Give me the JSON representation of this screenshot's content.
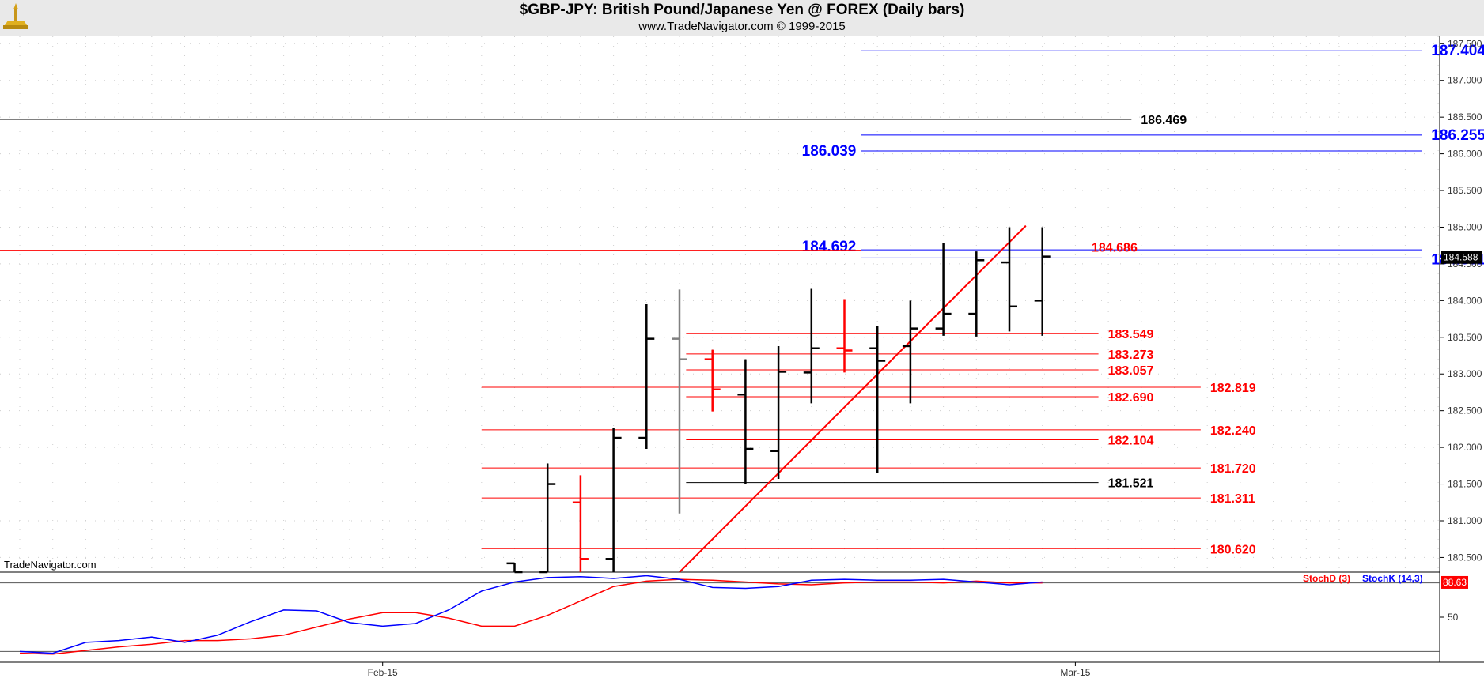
{
  "header": {
    "title": "$GBP-JPY:  British Pound/Japanese Yen @ FOREX  (Daily bars)",
    "subtitle": "www.TradeNavigator.com © 1999-2015"
  },
  "watermark": "TradeNavigator.com",
  "colors": {
    "up_bar": "#000000",
    "down_bar": "#ff0000",
    "neutral_bar": "#808080",
    "level_red": "#ff0000",
    "level_blue": "#0000ff",
    "level_black": "#000000",
    "stoch_d": "#ff0000",
    "stoch_k": "#0000ff",
    "header_bg": "#e9e9e9"
  },
  "chart_data": [
    {
      "type": "ohlc",
      "y_axis": {
        "ylim": [
          180.3,
          187.6
        ],
        "ticks": [
          "180.500",
          "181.000",
          "181.500",
          "182.000",
          "182.500",
          "183.000",
          "183.500",
          "184.000",
          "184.500",
          "185.000",
          "185.500",
          "186.000",
          "186.500",
          "187.000",
          "187.500"
        ]
      },
      "x_axis": {
        "labels": [
          {
            "label": "Feb-15",
            "index": 11
          },
          {
            "label": "Mar-15",
            "index": 32
          }
        ]
      },
      "bars": [
        {
          "i": 15,
          "o": 180.42,
          "h": 180.42,
          "l": 180.3,
          "c": 180.3,
          "color": "black"
        },
        {
          "i": 16,
          "o": 180.3,
          "h": 181.78,
          "l": 180.3,
          "c": 181.5,
          "color": "black"
        },
        {
          "i": 17,
          "o": 181.25,
          "h": 181.62,
          "l": 180.3,
          "c": 180.48,
          "color": "red"
        },
        {
          "i": 18,
          "o": 180.48,
          "h": 182.27,
          "l": 180.3,
          "c": 182.13,
          "color": "black"
        },
        {
          "i": 19,
          "o": 182.13,
          "h": 183.95,
          "l": 181.98,
          "c": 183.48,
          "color": "black"
        },
        {
          "i": 20,
          "o": 183.48,
          "h": 184.15,
          "l": 181.1,
          "c": 183.2,
          "color": "gray"
        },
        {
          "i": 21,
          "o": 183.2,
          "h": 183.33,
          "l": 182.49,
          "c": 182.79,
          "color": "red"
        },
        {
          "i": 22,
          "o": 182.72,
          "h": 183.2,
          "l": 181.5,
          "c": 181.98,
          "color": "black"
        },
        {
          "i": 23,
          "o": 181.95,
          "h": 183.38,
          "l": 181.57,
          "c": 183.03,
          "color": "black"
        },
        {
          "i": 24,
          "o": 183.02,
          "h": 184.16,
          "l": 182.6,
          "c": 183.35,
          "color": "black"
        },
        {
          "i": 25,
          "o": 183.35,
          "h": 184.02,
          "l": 183.02,
          "c": 183.32,
          "color": "red"
        },
        {
          "i": 26,
          "o": 183.35,
          "h": 183.65,
          "l": 181.65,
          "c": 183.18,
          "color": "black"
        },
        {
          "i": 27,
          "o": 183.38,
          "h": 184.0,
          "l": 182.6,
          "c": 183.62,
          "color": "black"
        },
        {
          "i": 28,
          "o": 183.62,
          "h": 184.78,
          "l": 183.52,
          "c": 183.82,
          "color": "black"
        },
        {
          "i": 29,
          "o": 183.82,
          "h": 184.67,
          "l": 183.51,
          "c": 184.55,
          "color": "black"
        },
        {
          "i": 30,
          "o": 184.52,
          "h": 185.0,
          "l": 183.58,
          "c": 183.92,
          "color": "black"
        },
        {
          "i": 31,
          "o": 184.0,
          "h": 185.0,
          "l": 183.52,
          "c": 184.6,
          "color": "black"
        }
      ],
      "current_price": "184.588",
      "levels": [
        {
          "label": "187.404",
          "value": 187.404,
          "color": "blue",
          "x0": 25.5,
          "x1": 42.5
        },
        {
          "label": "186.469",
          "value": 186.469,
          "color": "black",
          "x0": 0,
          "x1": 33.7
        },
        {
          "label": "186.255",
          "value": 186.255,
          "color": "blue",
          "x0": 25.5,
          "x1": 42.5
        },
        {
          "label": "186.039",
          "value": 186.039,
          "color": "blue",
          "x0": 25.5,
          "x1": 42.5
        },
        {
          "label": "184.692",
          "value": 184.692,
          "color": "blue",
          "x0": 25.5,
          "x1": 42.5
        },
        {
          "label": "184.686",
          "value": 184.686,
          "color": "red",
          "x0": 0,
          "x1": 25.5
        },
        {
          "label": "184.581",
          "value": 184.581,
          "color": "blue",
          "x0": 25.5,
          "x1": 42.5
        },
        {
          "label": "183.549",
          "value": 183.549,
          "color": "red",
          "x0": 20.2,
          "x1": 32.7
        },
        {
          "label": "183.273",
          "value": 183.273,
          "color": "red",
          "x0": 20.2,
          "x1": 32.7
        },
        {
          "label": "183.057",
          "value": 183.057,
          "color": "red",
          "x0": 20.2,
          "x1": 32.7
        },
        {
          "label": "182.819",
          "value": 182.819,
          "color": "red",
          "x0": 14,
          "x1": 35.8
        },
        {
          "label": "182.690",
          "value": 182.69,
          "color": "red",
          "x0": 20.2,
          "x1": 32.7
        },
        {
          "label": "182.240",
          "value": 182.24,
          "color": "red",
          "x0": 14,
          "x1": 35.8
        },
        {
          "label": "182.104",
          "value": 182.104,
          "color": "red",
          "x0": 20.2,
          "x1": 32.7
        },
        {
          "label": "181.720",
          "value": 181.72,
          "color": "red",
          "x0": 14,
          "x1": 35.8
        },
        {
          "label": "181.521",
          "value": 181.521,
          "color": "black",
          "x0": 20.2,
          "x1": 32.7
        },
        {
          "label": "181.311",
          "value": 181.311,
          "color": "red",
          "x0": 14,
          "x1": 35.8
        },
        {
          "label": "180.620",
          "value": 180.62,
          "color": "red",
          "x0": 14,
          "x1": 35.8
        }
      ],
      "trendline": {
        "from": {
          "i": 20,
          "v": 180.3
        },
        "to": {
          "i": 30.5,
          "v": 185.02
        },
        "color": "red"
      }
    },
    {
      "type": "line",
      "legend": [
        "StochD (3)",
        "StochK (14,3)"
      ],
      "ylim": [
        0,
        100
      ],
      "y_ticks": [
        "50"
      ],
      "reference_lines": [
        88,
        12
      ],
      "current_value": "88.63",
      "x": [
        0,
        1,
        2,
        3,
        4,
        5,
        6,
        7,
        8,
        9,
        10,
        11,
        12,
        13,
        14,
        15,
        16,
        17,
        18,
        19,
        20,
        21,
        22,
        23,
        24,
        25,
        26,
        27,
        28,
        29,
        30,
        31
      ],
      "series": [
        {
          "name": "StochD (3)",
          "color": "red",
          "values": [
            10,
            9,
            13,
            17,
            20,
            24,
            24,
            26,
            30,
            39,
            48,
            55,
            55,
            49,
            40,
            40,
            52,
            68,
            84,
            90,
            92,
            91,
            89,
            87,
            86,
            88,
            89,
            89,
            88,
            90,
            88,
            88
          ]
        },
        {
          "name": "StochK (14,3)",
          "color": "blue",
          "values": [
            12,
            10,
            22,
            24,
            28,
            22,
            30,
            45,
            58,
            57,
            44,
            40,
            43,
            58,
            79,
            89,
            94,
            95,
            93,
            96,
            92,
            83,
            82,
            84,
            91,
            92,
            91,
            91,
            92,
            89,
            86,
            89
          ]
        }
      ]
    }
  ]
}
